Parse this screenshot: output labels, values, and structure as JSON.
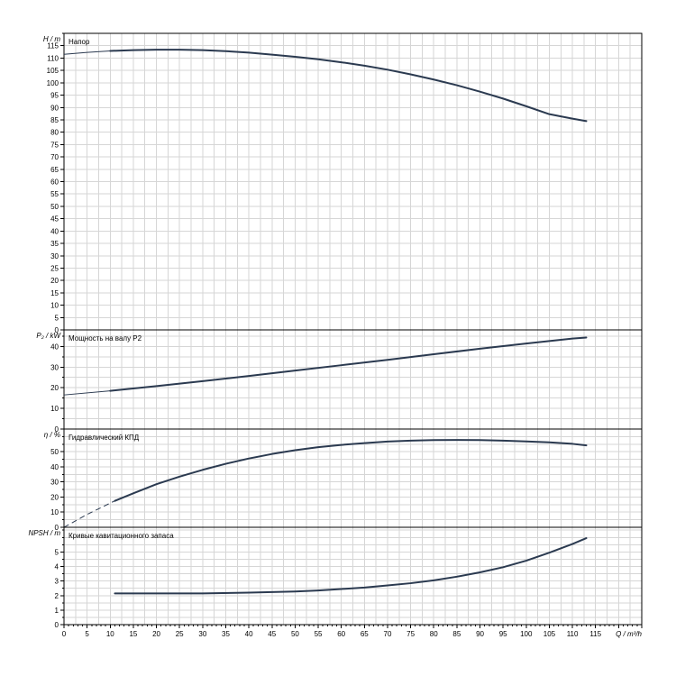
{
  "chart_data": [
    {
      "type": "line",
      "title": "Напор",
      "ylabel": "H / m",
      "ylim": [
        0,
        120
      ],
      "yticks": [
        0,
        5,
        10,
        15,
        20,
        25,
        30,
        35,
        40,
        45,
        50,
        55,
        60,
        65,
        70,
        75,
        80,
        85,
        90,
        95,
        100,
        105,
        110,
        115
      ],
      "xlim": [
        0,
        125
      ],
      "grid": true,
      "series": [
        {
          "x_start_thin": 0,
          "x": [
            0,
            5,
            10,
            15,
            20,
            25,
            30,
            35,
            40,
            45,
            50,
            55,
            60,
            65,
            70,
            75,
            80,
            85,
            90,
            95,
            100,
            105,
            110,
            113
          ],
          "y": [
            111.5,
            112.3,
            112.9,
            113.2,
            113.4,
            113.4,
            113.2,
            112.8,
            112.2,
            111.4,
            110.5,
            109.5,
            108.3,
            106.9,
            105.3,
            103.4,
            101.3,
            99.0,
            96.4,
            93.6,
            90.5,
            87.3,
            85.5,
            84.5
          ],
          "thick_from": 11
        }
      ]
    },
    {
      "type": "line",
      "title": "Мощность на валу P2",
      "ylabel": "P₂ / kW",
      "ylim": [
        0,
        48
      ],
      "yticks": [
        0,
        10,
        20,
        30,
        40
      ],
      "xlim": [
        0,
        125
      ],
      "grid": true,
      "series": [
        {
          "x": [
            0,
            10,
            20,
            30,
            40,
            50,
            60,
            70,
            80,
            90,
            100,
            110,
            113
          ],
          "y": [
            16.5,
            18.5,
            20.8,
            23.2,
            25.7,
            28.3,
            30.9,
            33.5,
            36.2,
            38.9,
            41.4,
            43.8,
            44.3
          ],
          "thick_from": 11
        }
      ]
    },
    {
      "type": "line",
      "title": "Гидравлический КПД",
      "ylabel": "η / %",
      "ylim": [
        0,
        65
      ],
      "yticks": [
        0,
        10,
        20,
        30,
        40,
        50
      ],
      "xlim": [
        0,
        125
      ],
      "grid": true,
      "series": [
        {
          "x": [
            0,
            5,
            11,
            15,
            20,
            25,
            30,
            35,
            40,
            45,
            50,
            55,
            60,
            65,
            70,
            75,
            80,
            85,
            90,
            95,
            100,
            105,
            110,
            113
          ],
          "y": [
            0,
            8.5,
            17.5,
            22.5,
            28.5,
            33.5,
            38,
            42,
            45.5,
            48.5,
            51,
            53,
            54.5,
            55.7,
            56.7,
            57.3,
            57.7,
            57.8,
            57.7,
            57.3,
            56.8,
            56.2,
            55.2,
            54.2
          ],
          "dashed_until": 11
        }
      ]
    },
    {
      "type": "line",
      "title": "Кривые кавитационного запаса",
      "ylabel": "NPSH / m",
      "ylim": [
        0,
        6.7
      ],
      "yticks": [
        0,
        1,
        2,
        3,
        4,
        5
      ],
      "xlim": [
        0,
        125
      ],
      "xticks": [
        0,
        5,
        10,
        15,
        20,
        25,
        30,
        35,
        40,
        45,
        50,
        55,
        60,
        65,
        70,
        75,
        80,
        85,
        90,
        95,
        100,
        105,
        110,
        115
      ],
      "xlabel": "Q / m³/h",
      "grid": true,
      "series": [
        {
          "x": [
            11,
            20,
            30,
            40,
            50,
            55,
            60,
            65,
            70,
            75,
            80,
            85,
            90,
            95,
            100,
            105,
            110,
            113
          ],
          "y": [
            2.15,
            2.15,
            2.15,
            2.2,
            2.28,
            2.35,
            2.45,
            2.55,
            2.7,
            2.85,
            3.05,
            3.3,
            3.6,
            3.95,
            4.4,
            4.95,
            5.55,
            5.95
          ]
        }
      ]
    }
  ]
}
